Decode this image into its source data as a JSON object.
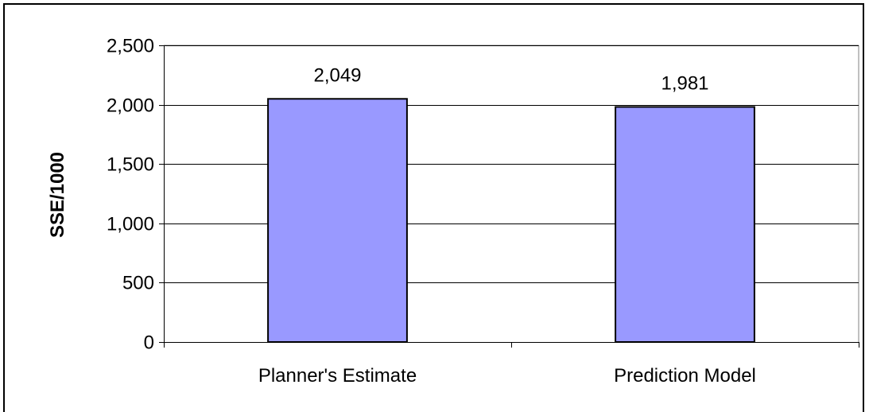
{
  "chart_data": {
    "type": "bar",
    "title": "",
    "xlabel": "",
    "ylabel": "SSE/1000",
    "categories": [
      "Planner's Estimate",
      "Prediction Model"
    ],
    "values": [
      2049,
      1981
    ],
    "data_labels": [
      "2,049",
      "1,981"
    ],
    "ylim": [
      0,
      2500
    ],
    "yticks": [
      0,
      500,
      1000,
      1500,
      2000,
      2500
    ],
    "ytick_labels": [
      "0",
      "500",
      "1,000",
      "1,500",
      "2,000",
      "2,500"
    ],
    "grid": true,
    "legend": "none",
    "colors": {
      "bar_fill": "#9999ff",
      "bar_stroke": "#000000",
      "gridline": "#000000",
      "plot_border": "#808080"
    }
  }
}
